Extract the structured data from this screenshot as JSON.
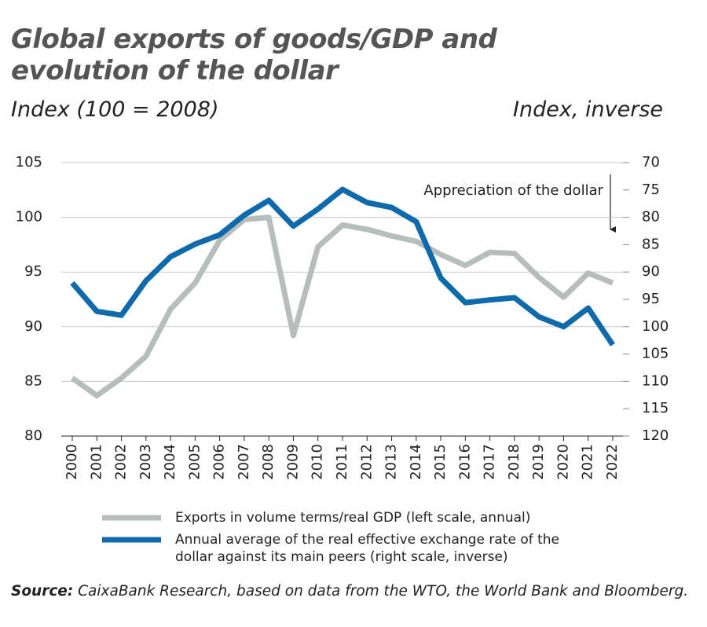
{
  "chart_data": {
    "type": "line",
    "title": "Global exports of goods/GDP and evolution of the dollar",
    "y_label": "Index (100 = 2008)",
    "y2_label": "Index, inverse",
    "annotation": "Appreciation of the dollar",
    "categories": [
      "2000",
      "2001",
      "2002",
      "2003",
      "2004",
      "2005",
      "2006",
      "2007",
      "2008",
      "2009",
      "2010",
      "2011",
      "2012",
      "2013",
      "2014",
      "2015",
      "2016",
      "2017",
      "2018",
      "2019",
      "2020",
      "2021",
      "2022"
    ],
    "series": [
      {
        "name": "Exports in volume terms/real GDP (left scale, annual)",
        "color": "#b5bdbd",
        "values": [
          85.3,
          83.7,
          85.3,
          87.3,
          91.6,
          94.0,
          97.9,
          99.8,
          100.0,
          89.2,
          97.3,
          99.3,
          98.9,
          98.3,
          97.8,
          96.6,
          95.6,
          96.8,
          96.7,
          94.5,
          92.7,
          94.9,
          94.0
        ]
      },
      {
        "name": "Annual average of the real effective exchange rate of the dollar against its main peers (right scale, inverse)",
        "color": "#0f6aab",
        "axis": "y2",
        "values": [
          92.0,
          97.2,
          97.9,
          91.6,
          87.2,
          84.9,
          83.2,
          79.6,
          76.9,
          81.6,
          78.5,
          74.9,
          77.3,
          78.2,
          80.8,
          91.1,
          95.6,
          95.1,
          94.7,
          98.2,
          100.0,
          96.6,
          103.3
        ]
      }
    ],
    "ylim": [
      80,
      105
    ],
    "yticks": [
      80,
      85,
      90,
      95,
      100,
      105
    ],
    "y2lim": [
      70,
      120
    ],
    "y2ticks": [
      70,
      75,
      80,
      85,
      90,
      95,
      100,
      105,
      110,
      115,
      120
    ],
    "y2_inverse": true,
    "grid": true,
    "source_label": "Source:",
    "source_text": "CaixaBank Research, based on data from the WTO, the World Bank and Bloomberg."
  }
}
